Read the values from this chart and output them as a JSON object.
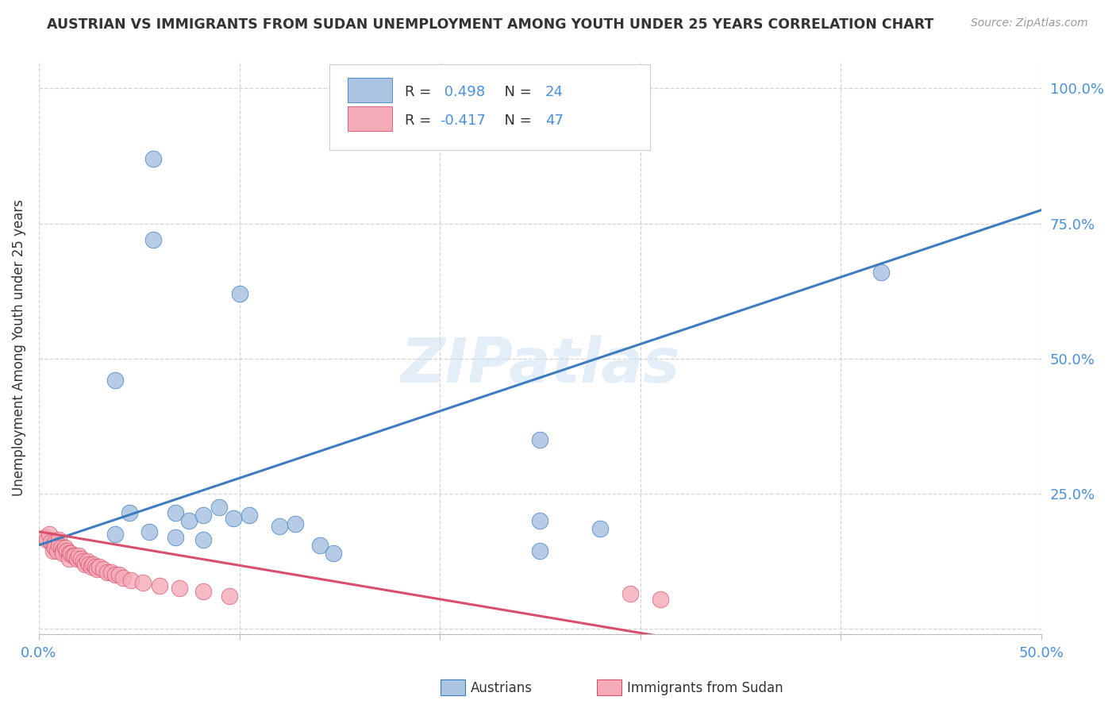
{
  "title": "AUSTRIAN VS IMMIGRANTS FROM SUDAN UNEMPLOYMENT AMONG YOUTH UNDER 25 YEARS CORRELATION CHART",
  "source": "Source: ZipAtlas.com",
  "ylabel": "Unemployment Among Youth under 25 years",
  "xlabel": "",
  "xlim": [
    0.0,
    0.5
  ],
  "ylim": [
    -0.01,
    1.05
  ],
  "blue_R": 0.498,
  "blue_N": 24,
  "pink_R": -0.417,
  "pink_N": 47,
  "blue_color": "#aac4e2",
  "pink_color": "#f5aab8",
  "blue_line_color": "#3d7dbf",
  "pink_line_color": "#d94f6e",
  "watermark": "ZIPatlas",
  "background_color": "#ffffff",
  "blue_scatter_x": [
    0.057,
    0.057,
    0.1,
    0.42,
    0.038,
    0.045,
    0.068,
    0.075,
    0.082,
    0.09,
    0.097,
    0.105,
    0.12,
    0.128,
    0.14,
    0.147,
    0.038,
    0.055,
    0.068,
    0.082,
    0.25,
    0.25,
    0.28,
    0.25
  ],
  "blue_scatter_y": [
    0.87,
    0.72,
    0.62,
    0.66,
    0.46,
    0.215,
    0.215,
    0.2,
    0.21,
    0.225,
    0.205,
    0.21,
    0.19,
    0.195,
    0.155,
    0.14,
    0.175,
    0.18,
    0.17,
    0.165,
    0.35,
    0.2,
    0.185,
    0.145
  ],
  "pink_scatter_x": [
    0.003,
    0.004,
    0.005,
    0.006,
    0.007,
    0.007,
    0.008,
    0.008,
    0.009,
    0.01,
    0.01,
    0.011,
    0.012,
    0.012,
    0.013,
    0.014,
    0.015,
    0.015,
    0.016,
    0.017,
    0.018,
    0.019,
    0.02,
    0.021,
    0.022,
    0.023,
    0.024,
    0.025,
    0.026,
    0.027,
    0.028,
    0.029,
    0.03,
    0.032,
    0.034,
    0.036,
    0.038,
    0.04,
    0.042,
    0.046,
    0.052,
    0.06,
    0.07,
    0.082,
    0.095,
    0.295,
    0.31
  ],
  "pink_scatter_y": [
    0.17,
    0.165,
    0.175,
    0.16,
    0.155,
    0.145,
    0.16,
    0.15,
    0.145,
    0.165,
    0.155,
    0.15,
    0.145,
    0.14,
    0.15,
    0.145,
    0.14,
    0.13,
    0.14,
    0.135,
    0.135,
    0.13,
    0.135,
    0.13,
    0.125,
    0.12,
    0.125,
    0.12,
    0.115,
    0.12,
    0.115,
    0.11,
    0.115,
    0.11,
    0.105,
    0.105,
    0.1,
    0.1,
    0.095,
    0.09,
    0.085,
    0.08,
    0.075,
    0.07,
    0.06,
    0.065,
    0.055
  ],
  "blue_line_x0": 0.0,
  "blue_line_y0": 0.155,
  "blue_line_x1": 0.5,
  "blue_line_y1": 0.775,
  "pink_line_x0": 0.0,
  "pink_line_y0": 0.18,
  "pink_line_x1": 0.32,
  "pink_line_y1": -0.02
}
